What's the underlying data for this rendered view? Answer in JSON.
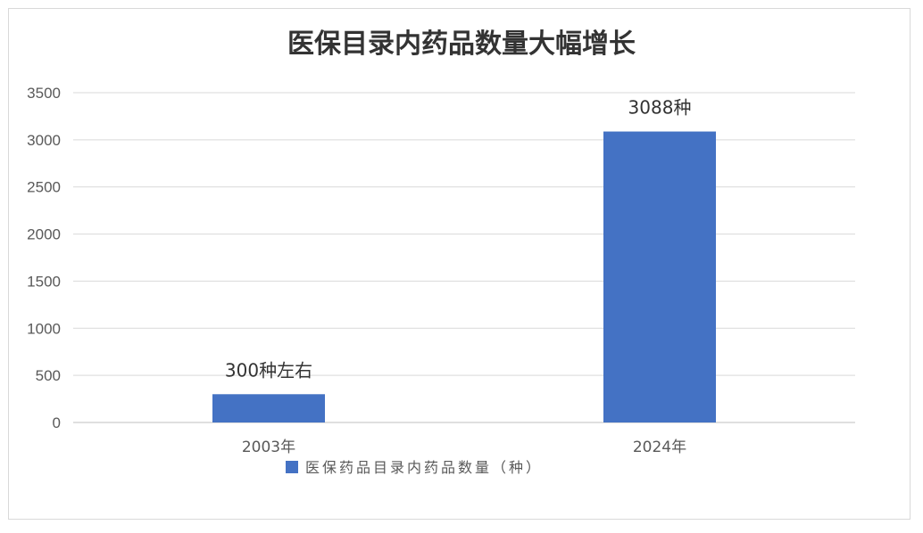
{
  "chart_data": {
    "type": "bar",
    "title": "医保目录内药品数量大幅增长",
    "categories": [
      "2003年",
      "2024年"
    ],
    "series": [
      {
        "name": "医保药品目录内药品数量（种）",
        "values": [
          300,
          3088
        ]
      }
    ],
    "data_labels": [
      "300种左右",
      "3088种"
    ],
    "ylim": [
      0,
      3500
    ],
    "yticks": [
      0,
      500,
      1000,
      1500,
      2000,
      2500,
      3000,
      3500
    ],
    "grid": true,
    "legend_position": "bottom",
    "colors": {
      "bar": "#4472C4",
      "grid": "#d9d9d9",
      "axis": "#bfbfbf"
    }
  }
}
